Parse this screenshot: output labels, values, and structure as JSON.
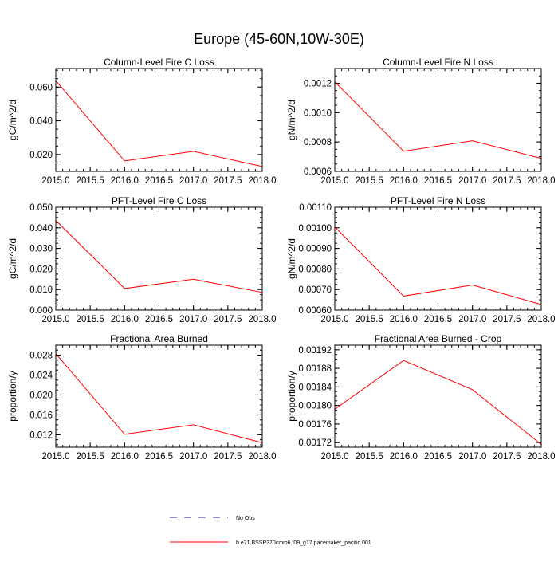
{
  "title": "Europe (45-60N,10W-30E)",
  "colors": {
    "series": "#ff0000",
    "obs": "#1a1aa6",
    "axis": "#000000"
  },
  "legend": {
    "obs_label": "No Obs",
    "series_label": "b.e21.BSSP370cmip6.f09_g17.pacemaker_pacific.001"
  },
  "chart_data": [
    {
      "type": "line",
      "title": "Column-Level Fire C Loss",
      "ylabel": "gC/m^2/d",
      "xlabel": "",
      "x": [
        2015,
        2016,
        2017,
        2018
      ],
      "series": [
        {
          "name": "b.e21.BSSP370cmip6.f09_g17.pacemaker_pacific.001",
          "values": [
            0.0638,
            0.0162,
            0.0219,
            0.0129
          ]
        }
      ],
      "xlim": [
        2015,
        2018
      ],
      "ylim": [
        0.01,
        0.071
      ],
      "xticks": [
        2015,
        2015.5,
        2016,
        2016.5,
        2017,
        2017.5,
        2018
      ],
      "xtick_labels": [
        "2015.0",
        "2015.5",
        "2016.0",
        "2016.5",
        "2017.0",
        "2017.5",
        "2018.0"
      ],
      "yticks": [
        0.02,
        0.04,
        0.06
      ],
      "ytick_labels": [
        "0.020",
        "0.040",
        "0.060"
      ],
      "yminor_step": 0.005
    },
    {
      "type": "line",
      "title": "Column-Level Fire N Loss",
      "ylabel": "gN/m^2/d",
      "xlabel": "",
      "x": [
        2015,
        2016,
        2017,
        2018
      ],
      "series": [
        {
          "name": "b.e21.BSSP370cmip6.f09_g17.pacemaker_pacific.001",
          "values": [
            0.00121,
            0.000737,
            0.000808,
            0.000688
          ]
        }
      ],
      "xlim": [
        2015,
        2018
      ],
      "ylim": [
        0.0006,
        0.0013
      ],
      "xticks": [
        2015,
        2015.5,
        2016,
        2016.5,
        2017,
        2017.5,
        2018
      ],
      "xtick_labels": [
        "2015.0",
        "2015.5",
        "2016.0",
        "2016.5",
        "2017.0",
        "2017.5",
        "2018.0"
      ],
      "yticks": [
        0.0006,
        0.0008,
        0.001,
        0.0012
      ],
      "ytick_labels": [
        "0.0006",
        "0.0008",
        "0.0010",
        "0.0012"
      ],
      "yminor_step": 5e-05
    },
    {
      "type": "line",
      "title": "PFT-Level Fire C Loss",
      "ylabel": "gC/m^2/d",
      "xlabel": "",
      "x": [
        2015,
        2016,
        2017,
        2018
      ],
      "series": [
        {
          "name": "b.e21.BSSP370cmip6.f09_g17.pacemaker_pacific.001",
          "values": [
            0.0436,
            0.0105,
            0.015,
            0.0086
          ]
        }
      ],
      "xlim": [
        2015,
        2018
      ],
      "ylim": [
        0.0,
        0.05
      ],
      "xticks": [
        2015,
        2015.5,
        2016,
        2016.5,
        2017,
        2017.5,
        2018
      ],
      "xtick_labels": [
        "2015.0",
        "2015.5",
        "2016.0",
        "2016.5",
        "2017.0",
        "2017.5",
        "2018.0"
      ],
      "yticks": [
        0.0,
        0.01,
        0.02,
        0.03,
        0.04,
        0.05
      ],
      "ytick_labels": [
        "0.000",
        "0.010",
        "0.020",
        "0.030",
        "0.040",
        "0.050"
      ],
      "yminor_step": 0.0025
    },
    {
      "type": "line",
      "title": "PFT-Level Fire N Loss",
      "ylabel": "gN/m^2/d",
      "xlabel": "",
      "x": [
        2015,
        2016,
        2017,
        2018
      ],
      "series": [
        {
          "name": "b.e21.BSSP370cmip6.f09_g17.pacemaker_pacific.001",
          "values": [
            0.001004,
            0.000668,
            0.000722,
            0.000627
          ]
        }
      ],
      "xlim": [
        2015,
        2018
      ],
      "ylim": [
        0.0006,
        0.0011
      ],
      "xticks": [
        2015,
        2015.5,
        2016,
        2016.5,
        2017,
        2017.5,
        2018
      ],
      "xtick_labels": [
        "2015.0",
        "2015.5",
        "2016.0",
        "2016.5",
        "2017.0",
        "2017.5",
        "2018.0"
      ],
      "yticks": [
        0.0006,
        0.0007,
        0.0008,
        0.0009,
        0.001,
        0.0011
      ],
      "ytick_labels": [
        "0.00060",
        "0.00070",
        "0.00080",
        "0.00090",
        "0.00100",
        "0.00110"
      ],
      "yminor_step": 2.5e-05
    },
    {
      "type": "line",
      "title": "Fractional Area Burned",
      "ylabel": "proportion/y",
      "xlabel": "",
      "x": [
        2015,
        2016,
        2017,
        2018
      ],
      "series": [
        {
          "name": "b.e21.BSSP370cmip6.f09_g17.pacemaker_pacific.001",
          "values": [
            0.0283,
            0.0121,
            0.014,
            0.0104
          ]
        }
      ],
      "xlim": [
        2015,
        2018
      ],
      "ylim": [
        0.0095,
        0.03
      ],
      "xticks": [
        2015,
        2015.5,
        2016,
        2016.5,
        2017,
        2017.5,
        2018
      ],
      "xtick_labels": [
        "2015.0",
        "2015.5",
        "2016.0",
        "2016.5",
        "2017.0",
        "2017.5",
        "2018.0"
      ],
      "yticks": [
        0.012,
        0.016,
        0.02,
        0.024,
        0.028
      ],
      "ytick_labels": [
        "0.012",
        "0.016",
        "0.020",
        "0.024",
        "0.028"
      ],
      "yminor_step": 0.001
    },
    {
      "type": "line",
      "title": "Fractional Area Burned - Crop",
      "ylabel": "proportion/y",
      "xlabel": "",
      "x": [
        2015,
        2016,
        2017,
        2018
      ],
      "series": [
        {
          "name": "b.e21.BSSP370cmip6.f09_g17.pacemaker_pacific.001",
          "values": [
            0.001792,
            0.001897,
            0.001834,
            0.001716
          ]
        }
      ],
      "xlim": [
        2015,
        2018
      ],
      "ylim": [
        0.00171,
        0.00193
      ],
      "xticks": [
        2015,
        2015.5,
        2016,
        2016.5,
        2017,
        2017.5,
        2018
      ],
      "xtick_labels": [
        "2015.0",
        "2015.5",
        "2016.0",
        "2016.5",
        "2017.0",
        "2017.5",
        "2018.0"
      ],
      "yticks": [
        0.00172,
        0.00176,
        0.0018,
        0.00184,
        0.00188,
        0.00192
      ],
      "ytick_labels": [
        "0.00172",
        "0.00176",
        "0.00180",
        "0.00184",
        "0.00188",
        "0.00192"
      ],
      "yminor_step": 1e-05
    }
  ]
}
